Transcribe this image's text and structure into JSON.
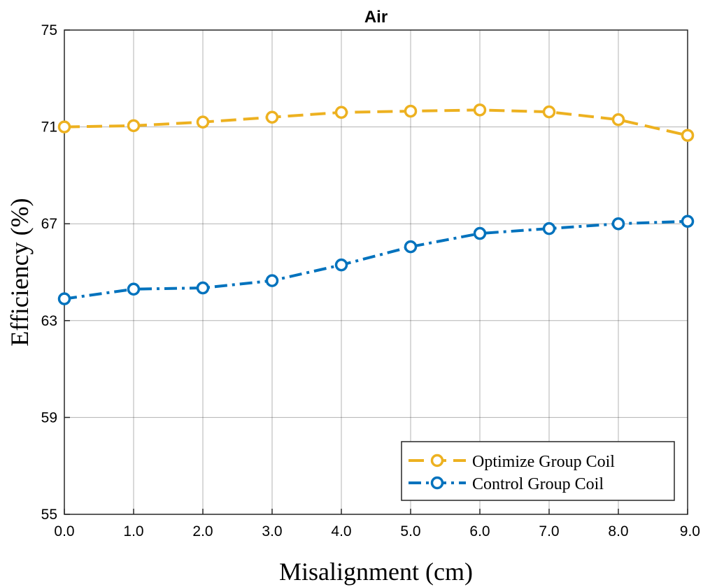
{
  "chart_data": {
    "type": "line",
    "title": "Air",
    "xlabel": "Misalignment (cm)",
    "ylabel": "Efficiency (%)",
    "x": [
      0,
      1,
      2,
      3,
      4,
      5,
      6,
      7,
      8,
      9
    ],
    "x_tick_labels": [
      "0.0",
      "1.0",
      "2.0",
      "3.0",
      "4.0",
      "5.0",
      "6.0",
      "7.0",
      "8.0",
      "9.0"
    ],
    "xlim": [
      0,
      9
    ],
    "ylim": [
      55,
      75
    ],
    "y_ticks": [
      55,
      59,
      63,
      67,
      71,
      75
    ],
    "y_tick_labels": [
      "55",
      "59",
      "63",
      "67",
      "71",
      "75"
    ],
    "grid": true,
    "legend_position": "bottom-right",
    "series": [
      {
        "name": "Optimize Group Coil",
        "color": "#EDB120",
        "line_style": "dashed",
        "marker": "circle",
        "values": [
          71.0,
          71.05,
          71.2,
          71.4,
          71.6,
          71.65,
          71.7,
          71.62,
          71.3,
          70.65
        ]
      },
      {
        "name": "Control Group Coil",
        "color": "#0072BD",
        "line_style": "dash-dot",
        "marker": "circle",
        "values": [
          63.9,
          64.3,
          64.35,
          64.65,
          65.3,
          66.05,
          66.6,
          66.8,
          67.0,
          67.1
        ]
      }
    ]
  }
}
